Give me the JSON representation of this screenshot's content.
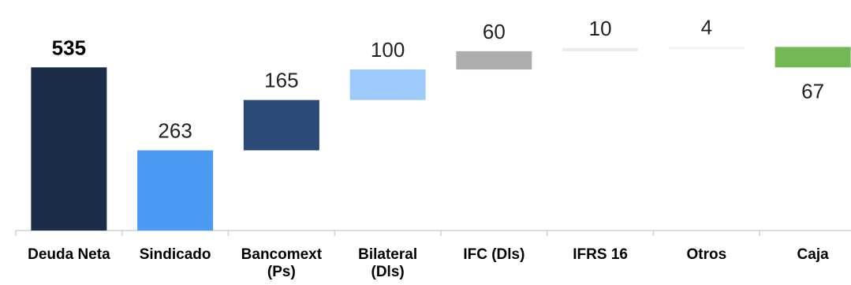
{
  "chart_data": {
    "type": "waterfall",
    "categories": [
      "Deuda Neta",
      "Sindicado",
      "Bancomext (Ps)",
      "Bilateral (Dls)",
      "IFC (Dls)",
      "IFRS 16",
      "Otros",
      "Caja"
    ],
    "category_lines": [
      [
        "Deuda Neta"
      ],
      [
        "Sindicado"
      ],
      [
        "Bancomext",
        "(Ps)"
      ],
      [
        "Bilateral",
        "(Dls)"
      ],
      [
        "IFC (Dls)"
      ],
      [
        "IFRS 16"
      ],
      [
        "Otros"
      ],
      [
        "Caja"
      ]
    ],
    "labels": [
      "535",
      "263",
      "165",
      "100",
      "60",
      "10",
      "4",
      "67"
    ],
    "bars": [
      {
        "bottom": 0,
        "top": 535,
        "color": "#1b2d47",
        "label_pos": "above",
        "bold": true
      },
      {
        "bottom": 0,
        "top": 263,
        "color": "#4b9bf5",
        "label_pos": "above"
      },
      {
        "bottom": 263,
        "top": 428,
        "color": "#2b4a78",
        "label_pos": "above"
      },
      {
        "bottom": 428,
        "top": 528,
        "color": "#9ccafa",
        "label_pos": "above"
      },
      {
        "bottom": 528,
        "top": 588,
        "color": "#adadad",
        "label_pos": "above"
      },
      {
        "bottom": 588,
        "top": 598,
        "color": "#e9e9e9",
        "label_pos": "above"
      },
      {
        "bottom": 598,
        "top": 602,
        "color": "#f1f1f1",
        "label_pos": "above"
      },
      {
        "bottom": 535,
        "top": 602,
        "color": "#72b955",
        "label_pos": "below"
      }
    ],
    "ylim": [
      0,
      730
    ],
    "grid": false,
    "legend": "none"
  }
}
